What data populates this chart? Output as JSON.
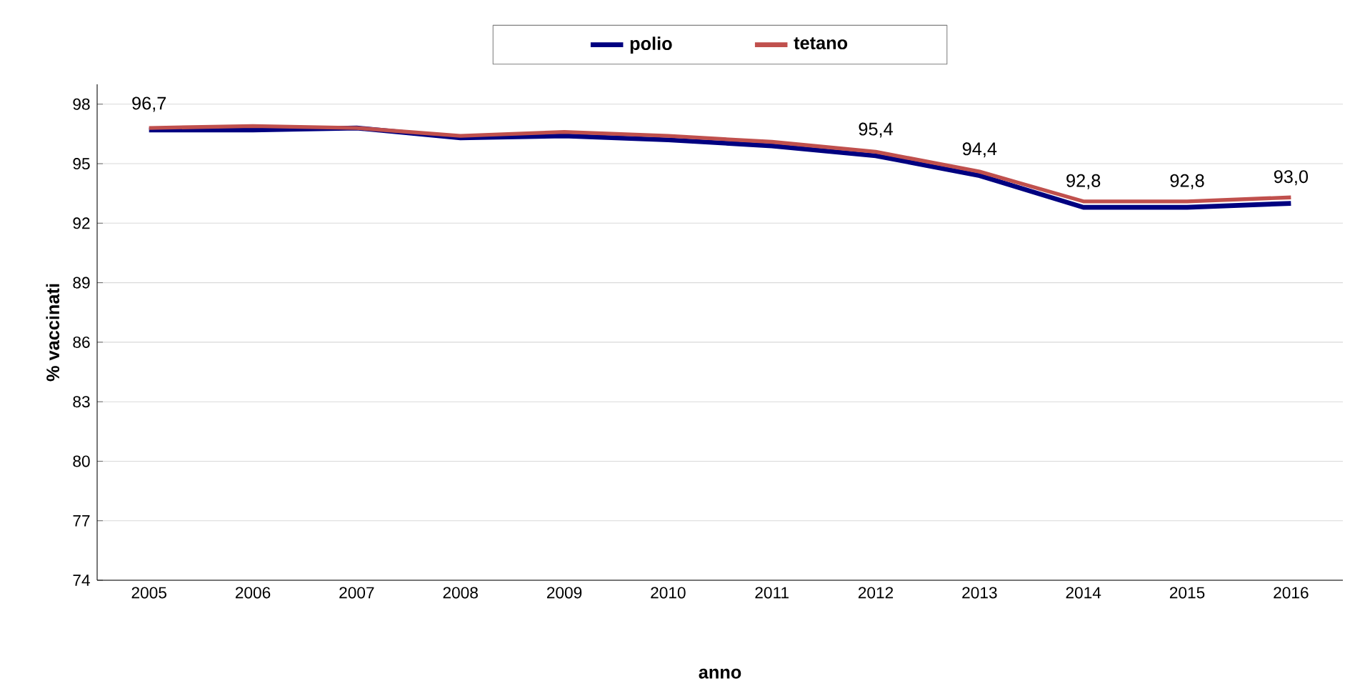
{
  "chart_data": {
    "type": "line",
    "xlabel": "anno",
    "ylabel": "% vaccinati",
    "categories": [
      "2005",
      "2006",
      "2007",
      "2008",
      "2009",
      "2010",
      "2011",
      "2012",
      "2013",
      "2014",
      "2015",
      "2016"
    ],
    "series": [
      {
        "name": "polio",
        "color": "#000080",
        "values": [
          96.7,
          96.7,
          96.8,
          96.3,
          96.4,
          96.2,
          95.9,
          95.4,
          94.4,
          92.8,
          92.8,
          93.0
        ],
        "value_labels": [
          "96,7",
          null,
          null,
          null,
          null,
          null,
          null,
          "95,4",
          "94,4",
          "92,8",
          "92,8",
          "93,0"
        ]
      },
      {
        "name": "tetano",
        "color": "#c0504d",
        "values": [
          96.8,
          96.9,
          96.8,
          96.4,
          96.6,
          96.4,
          96.1,
          95.6,
          94.6,
          93.1,
          93.1,
          93.3
        ]
      }
    ],
    "ylim": [
      74,
      99
    ],
    "yticks": [
      74,
      77,
      80,
      83,
      86,
      89,
      92,
      95,
      98
    ],
    "grid": "y",
    "legend": "top",
    "marker": "none",
    "line_style": "solid"
  }
}
